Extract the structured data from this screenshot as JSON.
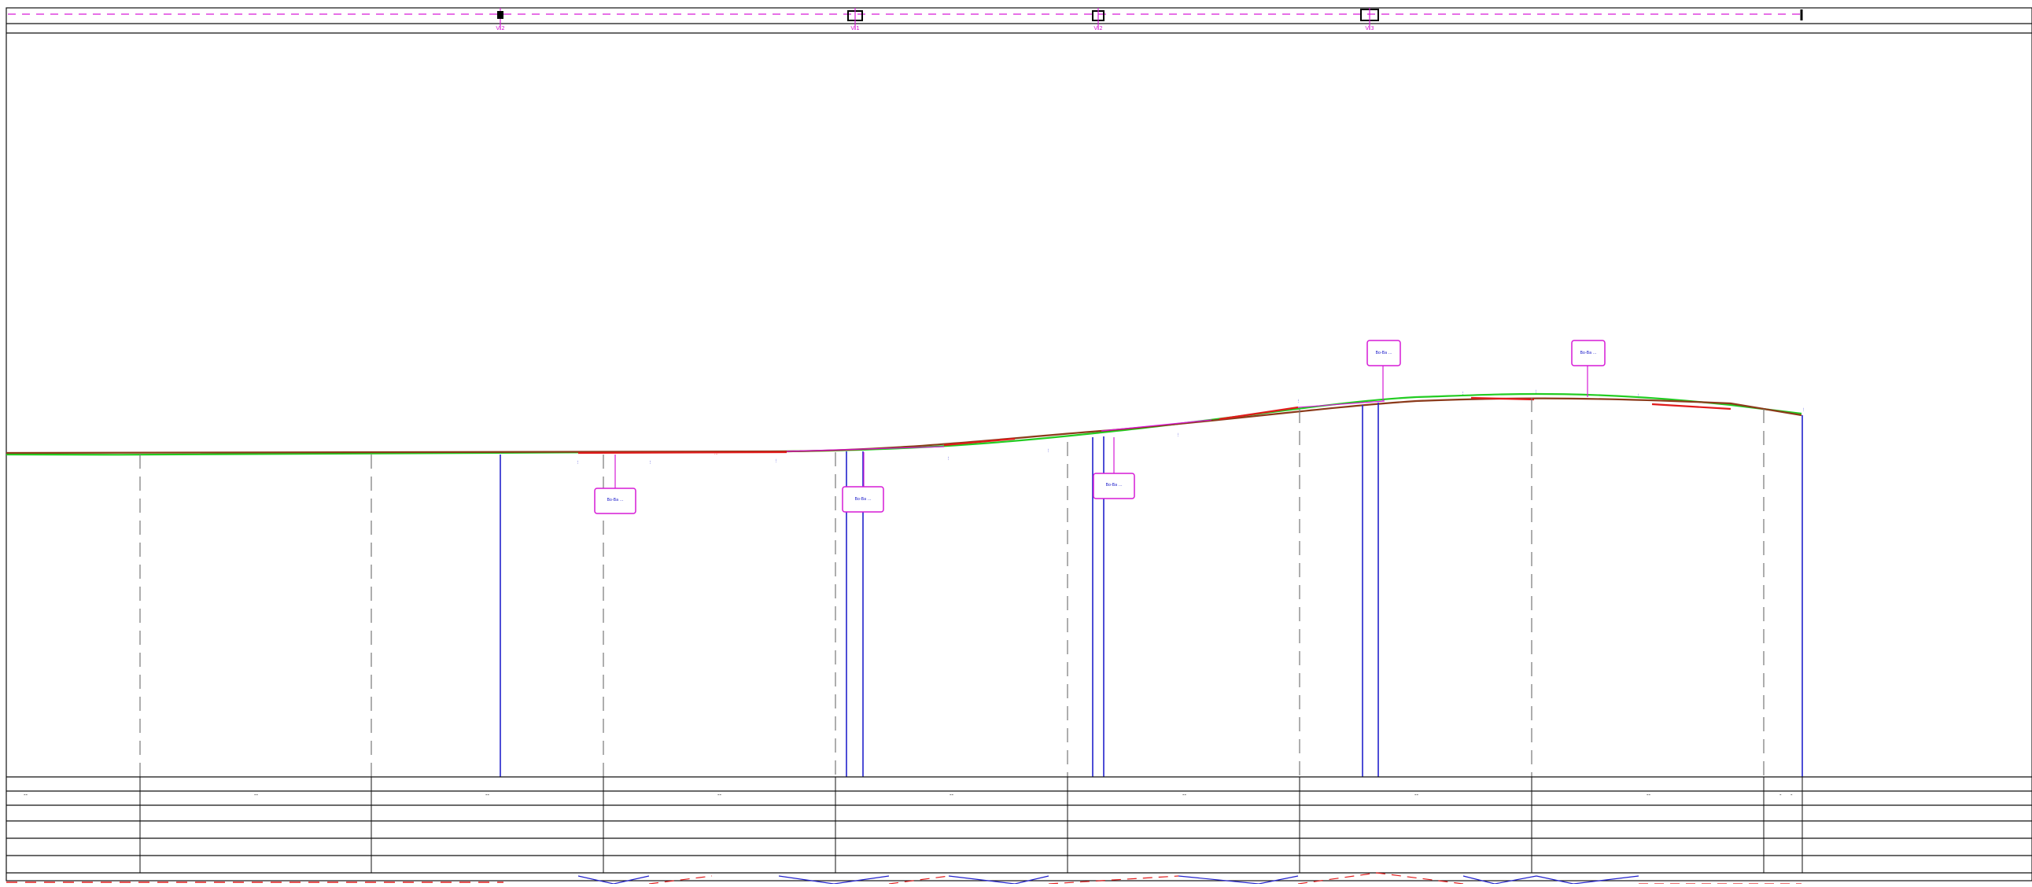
{
  "title": "",
  "colors": {
    "frame": "#111111",
    "magenta": "#d61ad6",
    "blue": "#2222cc",
    "red": "#e01b1b",
    "green": "#22cc22",
    "brown": "#8b3a1a",
    "gray": "#777777",
    "black": "#000000",
    "pink": "#ff66cc"
  },
  "top_band": {
    "labels": [
      "VI2",
      "VI1",
      "VI2",
      "VI3"
    ]
  },
  "profile": {
    "upper_tags": [
      "Bo-Ba ...",
      "Bo-Ba ..."
    ],
    "lower_tags": [
      "Bo-Ba ...",
      "Bo-Ba ...",
      "Bo-Ba ..."
    ],
    "vertical_texts": [
      "...",
      "...",
      "...",
      "...",
      "...",
      "...",
      "...",
      "...",
      "...",
      "...",
      "...",
      "...",
      "...",
      "..."
    ]
  },
  "bottom_table": {
    "cells_row1": [
      "--",
      "--",
      "--",
      "--",
      "--",
      "--",
      "--",
      "--",
      "-",
      "-"
    ]
  },
  "icons": [
    "station-marker-icon",
    "pipe-support-icon"
  ]
}
